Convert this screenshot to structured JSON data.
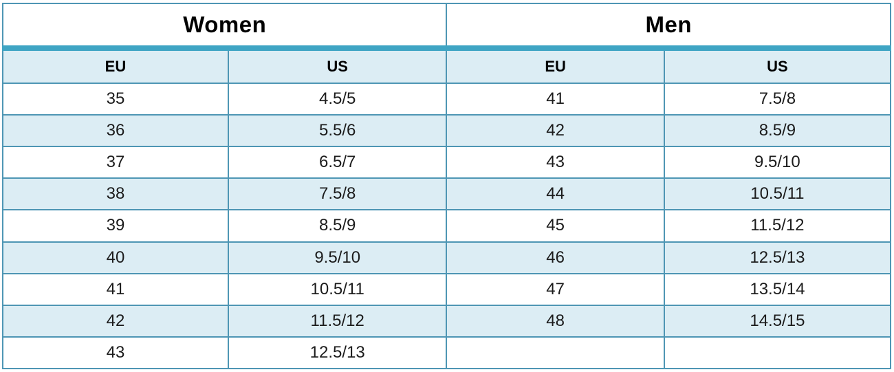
{
  "table": {
    "sections": [
      {
        "title": "Women",
        "col_headers": [
          "EU",
          "US"
        ],
        "rows": [
          [
            "35",
            "4.5/5"
          ],
          [
            "36",
            "5.5/6"
          ],
          [
            "37",
            "6.5/7"
          ],
          [
            "38",
            "7.5/8"
          ],
          [
            "39",
            "8.5/9"
          ],
          [
            "40",
            "9.5/10"
          ],
          [
            "41",
            "10.5/11"
          ],
          [
            "42",
            "11.5/12"
          ],
          [
            "43",
            "12.5/13"
          ]
        ]
      },
      {
        "title": "Men",
        "col_headers": [
          "EU",
          "US"
        ],
        "rows": [
          [
            "41",
            "7.5/8"
          ],
          [
            "42",
            "8.5/9"
          ],
          [
            "43",
            "9.5/10"
          ],
          [
            "44",
            "10.5/11"
          ],
          [
            "45",
            "11.5/12"
          ],
          [
            "46",
            "12.5/13"
          ],
          [
            "47",
            "13.5/14"
          ],
          [
            "48",
            "14.5/15"
          ],
          [
            "",
            ""
          ]
        ]
      }
    ]
  },
  "colors": {
    "accent": "#3fa5c4",
    "border": "#4e96b4",
    "row_alt": "#dcedf4"
  }
}
